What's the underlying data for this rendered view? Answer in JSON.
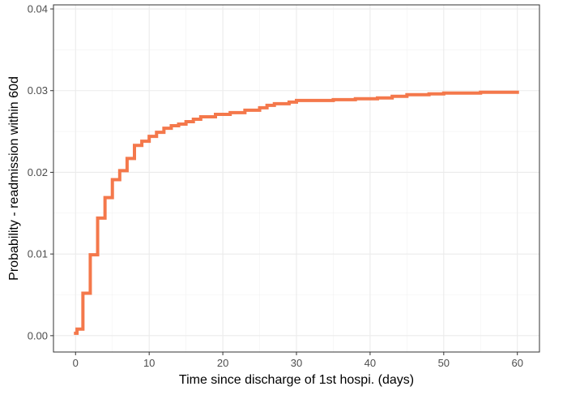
{
  "chart_data": {
    "type": "line",
    "step": true,
    "title": "",
    "xlabel": "Time since discharge of 1st hospi. (days)",
    "ylabel": "Probability - readmission within 60d",
    "xlim": [
      -3,
      63
    ],
    "ylim": [
      -0.002,
      0.0405
    ],
    "x_ticks": [
      0,
      10,
      20,
      30,
      40,
      50,
      60
    ],
    "x_tick_labels": [
      "0",
      "10",
      "20",
      "30",
      "40",
      "50",
      "60"
    ],
    "y_ticks": [
      0.0,
      0.01,
      0.02,
      0.03,
      0.04
    ],
    "y_tick_labels": [
      "0.00",
      "0.01",
      "0.02",
      "0.03",
      "0.04"
    ],
    "grid": true,
    "legend": "none",
    "series": [
      {
        "color": "#F4784B",
        "x": [
          0,
          0.2,
          1,
          2,
          3,
          4,
          5,
          6,
          7,
          8,
          9,
          10,
          11,
          12,
          13,
          14,
          15,
          16,
          17,
          19,
          21,
          23,
          25,
          26,
          27,
          29,
          30,
          32,
          35,
          38,
          41,
          43,
          45,
          48,
          50,
          52,
          55,
          58,
          60
        ],
        "y": [
          0.0003,
          0.0008,
          0.0052,
          0.0099,
          0.0144,
          0.0169,
          0.0191,
          0.0202,
          0.0217,
          0.0233,
          0.0238,
          0.0244,
          0.0249,
          0.0254,
          0.0257,
          0.0259,
          0.0262,
          0.0265,
          0.0268,
          0.0271,
          0.0273,
          0.0276,
          0.0279,
          0.0282,
          0.0284,
          0.0286,
          0.0288,
          0.0288,
          0.0289,
          0.029,
          0.0291,
          0.0293,
          0.0295,
          0.0296,
          0.0297,
          0.0297,
          0.0298,
          0.0298,
          0.0298
        ]
      }
    ]
  }
}
